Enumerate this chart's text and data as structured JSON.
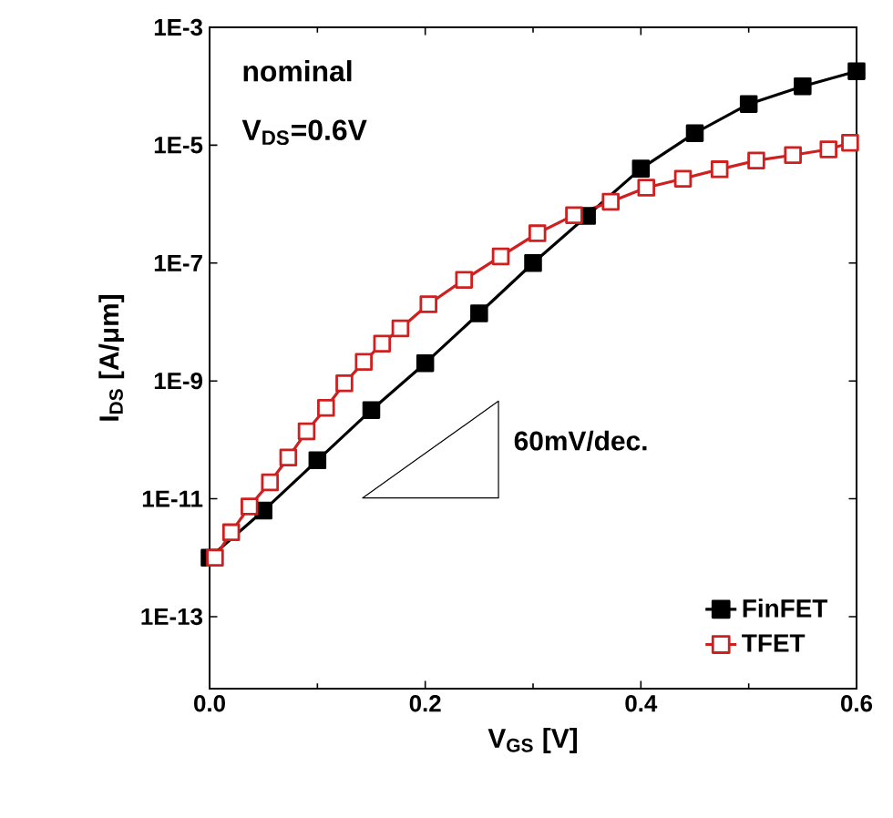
{
  "chart_data": {
    "type": "line",
    "xlabel": "V$_{GS}$ [V]",
    "ylabel": "I$_{DS}$ [A/μm]",
    "annotations": [
      "nominal",
      "V$_{DS}$=0.6V",
      "60mV/dec."
    ],
    "log": "y",
    "xlim": [
      0,
      0.6
    ],
    "ylim": [
      6e-15,
      0.001
    ],
    "xticks": [
      {
        "value": 0,
        "label": "0.0"
      },
      0.2,
      0.4,
      0.6
    ],
    "yticks": [
      {
        "value": 1e-13,
        "label": "1E-13"
      },
      {
        "value": 1e-11,
        "label": "1E-11"
      },
      {
        "value": 1e-09,
        "label": "1E-9"
      },
      {
        "value": 1e-07,
        "label": "1E-7"
      },
      {
        "value": 1e-05,
        "label": "1E-5"
      },
      {
        "value": 0.001,
        "label": "1E-3"
      }
    ],
    "legend": "bottom right",
    "marker": "square",
    "grid": false,
    "series": [
      {
        "name": "FinFET",
        "color": "#000000",
        "x": [
          0,
          0.05,
          0.1,
          0.15,
          0.2,
          0.25,
          0.3,
          0.35,
          0.4,
          0.45,
          0.5,
          0.55,
          0.6
        ],
        "values": [
          1e-12,
          6.3e-12,
          4.5e-11,
          3.2e-10,
          2e-09,
          1.4e-08,
          1e-07,
          6.3e-07,
          4e-06,
          1.6e-05,
          5e-05,
          0.0001,
          0.00018
        ]
      },
      {
        "name": "TFET",
        "color": "#d01f1f",
        "x": [
          0.005,
          0.02,
          0.037,
          0.056,
          0.073,
          0.09,
          0.108,
          0.125,
          0.143,
          0.16,
          0.177,
          0.203,
          0.236,
          0.27,
          0.304,
          0.338,
          0.372,
          0.405,
          0.439,
          0.473,
          0.507,
          0.541,
          0.574,
          0.594
        ],
        "values": [
          1e-12,
          2.7e-12,
          7.4e-12,
          1.9e-11,
          5e-11,
          1.4e-10,
          3.5e-10,
          9.1e-10,
          2.1e-09,
          4.3e-09,
          7.8e-09,
          2e-08,
          5.2e-08,
          1.3e-07,
          3.2e-07,
          6.5e-07,
          1.1e-06,
          1.9e-06,
          2.7e-06,
          3.9e-06,
          5.5e-06,
          6.8e-06,
          8.5e-06,
          1.1e-05
        ]
      }
    ]
  }
}
